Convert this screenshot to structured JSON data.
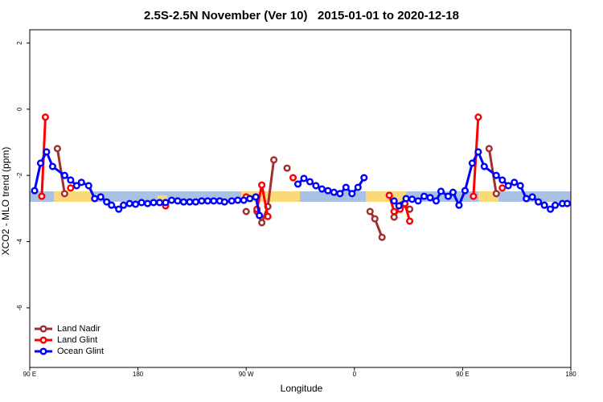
{
  "chart_data": {
    "type": "line",
    "title": "2.5S-2.5N November (Ver 10)   2015-01-01 to 2020-12-18",
    "x_label": "Longitude",
    "y_label": "XCO2 - MLO trend (ppm)",
    "xlim": [
      90,
      540
    ],
    "xticks": [
      {
        "value": 90,
        "label": "90 E"
      },
      {
        "value": 180,
        "label": "180"
      },
      {
        "value": 270,
        "label": "90 W"
      },
      {
        "value": 360,
        "label": "0"
      },
      {
        "value": 450,
        "label": "90 E"
      },
      {
        "value": 540,
        "label": "180"
      }
    ],
    "ylim": [
      -7.8,
      2.4
    ],
    "yticks": [
      -6,
      -4,
      -2,
      0,
      2
    ],
    "legend": "bottom-left",
    "series": [
      {
        "name": "Land Nadir",
        "color": "#a0302e",
        "x": [
          113,
          119,
          null,
          270,
          null,
          279,
          283,
          288,
          293,
          null,
          304,
          null,
          373,
          377,
          383,
          null,
          393,
          399,
          406,
          null,
          472,
          478
        ],
        "values": [
          -1.19,
          -2.55,
          null,
          -3.09,
          null,
          -3.09,
          -3.43,
          -2.94,
          -1.53,
          null,
          -1.78,
          null,
          -3.09,
          -3.31,
          -3.87,
          null,
          -3.26,
          -2.9,
          -3.02,
          null,
          -1.19,
          -2.55
        ]
      },
      {
        "name": "Land Glint",
        "color": "#ff0000",
        "x": [
          100,
          103,
          null,
          124,
          null,
          203,
          null,
          270,
          null,
          279,
          283,
          288,
          null,
          309,
          null,
          389,
          393,
          398,
          402,
          406,
          null,
          459,
          463,
          null,
          483
        ],
        "values": [
          -2.63,
          -0.24,
          null,
          -2.38,
          null,
          -2.92,
          null,
          -2.65,
          null,
          -3.02,
          -2.29,
          -3.24,
          null,
          -2.07,
          null,
          -2.6,
          -3.09,
          -3.02,
          -2.85,
          -3.38,
          null,
          -2.63,
          -0.24,
          null,
          -2.38
        ]
      },
      {
        "name": "Ocean Glint",
        "color": "#0000ff",
        "x": [
          94,
          99,
          104,
          109,
          119,
          124,
          129,
          133,
          139,
          144,
          149,
          154,
          158,
          164,
          168,
          173,
          178,
          183,
          188,
          193,
          198,
          203,
          208,
          213,
          218,
          223,
          228,
          233,
          238,
          243,
          248,
          252,
          258,
          263,
          268,
          273,
          278,
          281,
          null,
          313,
          318,
          323,
          328,
          333,
          338,
          343,
          348,
          353,
          358,
          363,
          368,
          null,
          393,
          397,
          403,
          408,
          413,
          418,
          423,
          428,
          432,
          438,
          442,
          447,
          452,
          458,
          463,
          468,
          478,
          483,
          488,
          493,
          498,
          503,
          508,
          513,
          518,
          523,
          527,
          533,
          537
        ],
        "values": [
          -2.46,
          -1.63,
          -1.29,
          -1.73,
          -2.0,
          -2.14,
          -2.31,
          -2.21,
          -2.31,
          -2.7,
          -2.65,
          -2.8,
          -2.9,
          -3.02,
          -2.9,
          -2.85,
          -2.87,
          -2.82,
          -2.85,
          -2.82,
          -2.82,
          -2.82,
          -2.75,
          -2.77,
          -2.8,
          -2.8,
          -2.8,
          -2.77,
          -2.77,
          -2.77,
          -2.77,
          -2.8,
          -2.77,
          -2.75,
          -2.75,
          -2.7,
          -2.65,
          -3.21,
          null,
          -2.26,
          -2.09,
          -2.19,
          -2.31,
          -2.41,
          -2.46,
          -2.51,
          -2.55,
          -2.36,
          -2.55,
          -2.36,
          -2.07,
          null,
          -2.77,
          -2.92,
          -2.7,
          -2.72,
          -2.77,
          -2.63,
          -2.67,
          -2.77,
          -2.48,
          -2.63,
          -2.51,
          -2.9,
          -2.46,
          -1.63,
          -1.29,
          -1.73,
          -2.0,
          -2.14,
          -2.31,
          -2.21,
          -2.31,
          -2.7,
          -2.65,
          -2.8,
          -2.9,
          -3.02,
          -2.9,
          -2.85,
          -2.85
        ]
      }
    ]
  }
}
